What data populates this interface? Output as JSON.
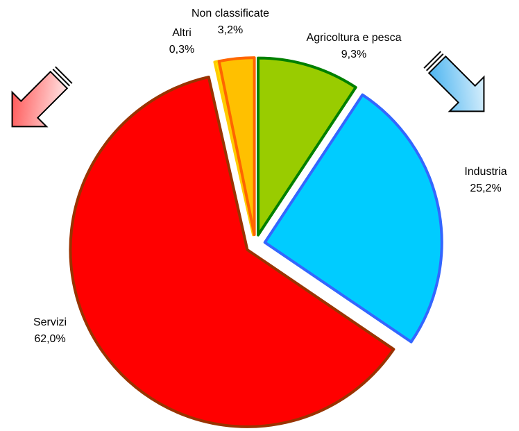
{
  "chart_data": {
    "type": "pie",
    "categories": [
      "Agricoltura e pesca",
      "Industria",
      "Servizi",
      "Altri",
      "Non classificate"
    ],
    "values": [
      9.3,
      25.2,
      62.0,
      0.3,
      3.2
    ],
    "value_labels": [
      "9,3%",
      "25,2%",
      "62,0%",
      "0,3%",
      "3,2%"
    ],
    "colors": [
      "#99cc00",
      "#00ccff",
      "#ff0000",
      "#ffff00",
      "#ffc000"
    ],
    "edge_colors": [
      "#008000",
      "#3366ff",
      "#993300",
      "#ffcc00",
      "#ff6600"
    ]
  }
}
